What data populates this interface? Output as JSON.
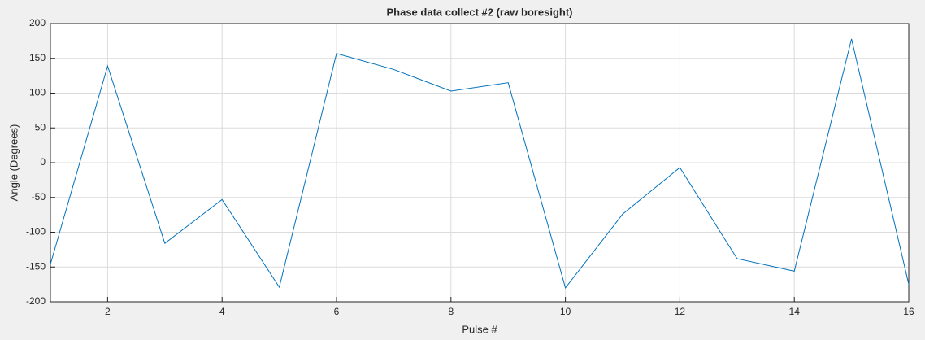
{
  "chart_data": {
    "type": "line",
    "title": "Phase data collect #2 (raw boresight)",
    "x_label": "Pulse #",
    "y_label": "Angle (Degrees)",
    "x": [
      1,
      2,
      3,
      4,
      5,
      6,
      7,
      8,
      9,
      10,
      11,
      12,
      13,
      14,
      15,
      16
    ],
    "series": [
      {
        "name": "Phase",
        "color": "#0072bd",
        "values": [
          -146,
          139,
          -116,
          -53,
          -179,
          157,
          134,
          103,
          115,
          -180,
          -74,
          -7,
          -138,
          -156,
          178,
          -175
        ]
      }
    ],
    "xlim": [
      1,
      16
    ],
    "xticks": [
      2,
      4,
      6,
      8,
      10,
      12,
      14,
      16
    ],
    "ylim": [
      -200,
      200
    ],
    "yticks": [
      -200,
      -150,
      -100,
      -50,
      0,
      50,
      100,
      150,
      200
    ],
    "grid": true
  }
}
